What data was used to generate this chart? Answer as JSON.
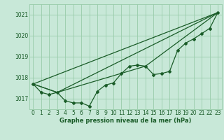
{
  "xlabel": "Graphe pression niveau de la mer (hPa)",
  "background_color": "#c8e8d8",
  "grid_color": "#99ccaa",
  "line_color": "#1a5c28",
  "text_color": "#1a5c28",
  "ylim": [
    1016.5,
    1021.5
  ],
  "xlim": [
    -0.5,
    23.5
  ],
  "yticks": [
    1017,
    1018,
    1019,
    1020,
    1021
  ],
  "xticks": [
    0,
    1,
    2,
    3,
    4,
    5,
    6,
    7,
    8,
    9,
    10,
    11,
    12,
    13,
    14,
    15,
    16,
    17,
    18,
    19,
    20,
    21,
    22,
    23
  ],
  "series1_x": [
    0,
    1,
    2,
    3,
    4,
    5,
    6,
    7,
    8,
    9,
    10,
    11,
    12,
    13,
    14,
    15,
    16,
    17,
    18,
    19,
    20,
    21,
    22,
    23
  ],
  "series1_y": [
    1017.7,
    1017.3,
    1017.2,
    1017.3,
    1016.9,
    1016.8,
    1016.8,
    1016.65,
    1017.35,
    1017.65,
    1017.75,
    1018.2,
    1018.55,
    1018.6,
    1018.55,
    1018.15,
    1018.2,
    1018.3,
    1019.3,
    1019.65,
    1019.85,
    1020.1,
    1020.35,
    1021.1
  ],
  "series2_x": [
    0,
    3,
    23
  ],
  "series2_y": [
    1017.7,
    1017.3,
    1021.1
  ],
  "series3_x": [
    0,
    3,
    14,
    23
  ],
  "series3_y": [
    1017.7,
    1017.3,
    1018.55,
    1021.1
  ],
  "series4_x": [
    0,
    23
  ],
  "series4_y": [
    1017.7,
    1021.1
  ],
  "figsize": [
    3.2,
    2.0
  ],
  "dpi": 100,
  "xlabel_fontsize": 6.0,
  "tick_fontsize": 5.5
}
